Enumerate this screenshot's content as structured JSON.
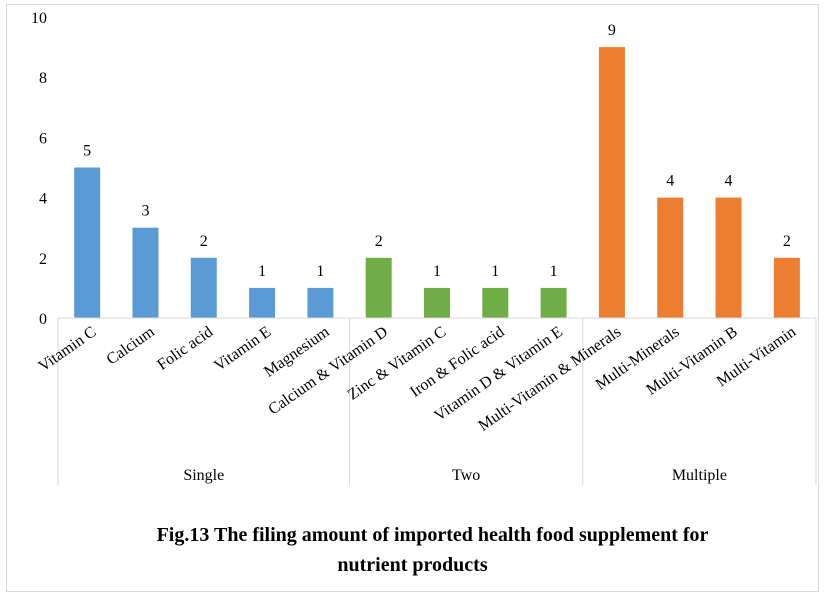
{
  "chart_data": {
    "type": "bar",
    "title": "",
    "caption": {
      "line1": "Fig.13  The filing amount of imported health food supplement for",
      "line2": "nutrient products"
    },
    "xlabel": "",
    "ylabel": "",
    "ylim": [
      0,
      10
    ],
    "yticks": [
      "0",
      "2",
      "4",
      "6",
      "8",
      "10"
    ],
    "grid": false,
    "legend": "none",
    "categories": [
      "Vitamin C",
      "Calcium",
      "Folic acid",
      "Vitamin E",
      "Magnesium",
      "Calcium & Vitamin D",
      "Zinc & Vitamin C",
      "Iron & Folic acid",
      "Vitamin D & Vitamin E",
      "Multi-Vitamin & Minerals",
      "Multi-Minerals",
      "Multi-Vitamin B",
      "Multi-Vitamin"
    ],
    "values": [
      5,
      3,
      2,
      1,
      1,
      2,
      1,
      1,
      1,
      9,
      4,
      4,
      2
    ],
    "groups": [
      {
        "name": "Single",
        "count": 5,
        "color": "#5b9bd5"
      },
      {
        "name": "Two",
        "count": 4,
        "color": "#70ad47"
      },
      {
        "name": "Multiple",
        "count": 4,
        "color": "#ed7d31"
      }
    ],
    "data_labels": [
      "5",
      "3",
      "2",
      "1",
      "1",
      "2",
      "1",
      "1",
      "1",
      "9",
      "4",
      "4",
      "2"
    ]
  }
}
